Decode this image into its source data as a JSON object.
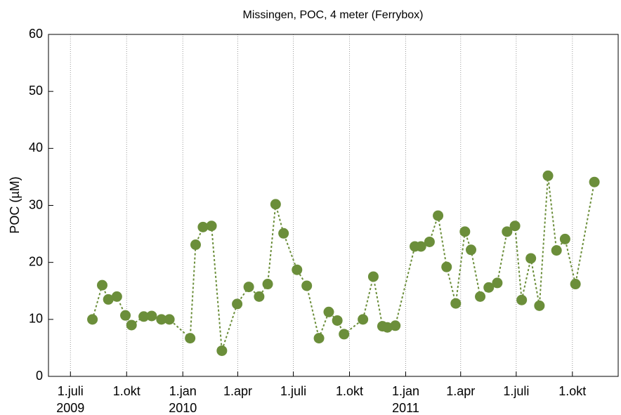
{
  "chart_data": {
    "type": "line",
    "title": "Missingen, POC, 4 meter (Ferrybox)",
    "y_label": "POC (µM)",
    "x": [
      "2009-08-06",
      "2009-08-22",
      "2009-09-01",
      "2009-09-15",
      "2009-09-29",
      "2009-10-09",
      "2009-10-29",
      "2009-11-11",
      "2009-11-27",
      "2009-12-10",
      "2010-01-13",
      "2010-01-22",
      "2010-02-03",
      "2010-02-17",
      "2010-03-06",
      "2010-03-31",
      "2010-04-19",
      "2010-05-06",
      "2010-05-20",
      "2010-06-02",
      "2010-06-15",
      "2010-07-07",
      "2010-07-23",
      "2010-08-12",
      "2010-08-28",
      "2010-09-11",
      "2010-09-22",
      "2010-10-23",
      "2010-11-09",
      "2010-11-24",
      "2010-12-02",
      "2010-12-15",
      "2011-01-16",
      "2011-01-26",
      "2011-02-09",
      "2011-02-23",
      "2011-03-09",
      "2011-03-24",
      "2011-04-08",
      "2011-04-18",
      "2011-05-03",
      "2011-05-17",
      "2011-05-31",
      "2011-06-16",
      "2011-06-29",
      "2011-07-10",
      "2011-07-25",
      "2011-08-08",
      "2011-08-22",
      "2011-09-05",
      "2011-09-19",
      "2011-10-06",
      "2011-11-06"
    ],
    "series": [
      {
        "name": "POC",
        "color": "#6b8e3a",
        "values": [
          10.0,
          16.0,
          13.5,
          14.0,
          10.7,
          9.0,
          10.5,
          10.6,
          10.0,
          10.0,
          6.7,
          23.1,
          26.2,
          26.4,
          4.5,
          12.7,
          15.7,
          14.0,
          16.2,
          30.2,
          25.1,
          18.7,
          15.9,
          6.7,
          11.3,
          9.8,
          7.4,
          10.0,
          17.5,
          8.8,
          8.6,
          8.9,
          22.8,
          22.8,
          23.6,
          28.2,
          19.2,
          12.8,
          25.4,
          22.2,
          14.0,
          15.6,
          16.4,
          25.4,
          26.4,
          13.4,
          20.7,
          12.4,
          35.2,
          22.1,
          24.1,
          16.2,
          34.1
        ]
      }
    ],
    "xlim": [
      "2009-05-26",
      "2011-12-15"
    ],
    "xticks": [
      {
        "value": "2009-07-01",
        "label": "1.juli\n2009"
      },
      {
        "value": "2009-10-01",
        "label": "1.okt"
      },
      {
        "value": "2010-01-01",
        "label": "1.jan\n2010"
      },
      {
        "value": "2010-04-01",
        "label": "1.apr"
      },
      {
        "value": "2010-07-01",
        "label": "1.juli"
      },
      {
        "value": "2010-10-01",
        "label": "1.okt"
      },
      {
        "value": "2011-01-01",
        "label": "1.jan\n2011"
      },
      {
        "value": "2011-04-01",
        "label": "1.apr"
      },
      {
        "value": "2011-07-01",
        "label": "1.juli"
      },
      {
        "value": "2011-10-01",
        "label": "1.okt"
      }
    ],
    "ylim": [
      0,
      60
    ],
    "yticks": [
      0,
      10,
      20,
      30,
      40,
      50,
      60
    ],
    "grid": true
  }
}
